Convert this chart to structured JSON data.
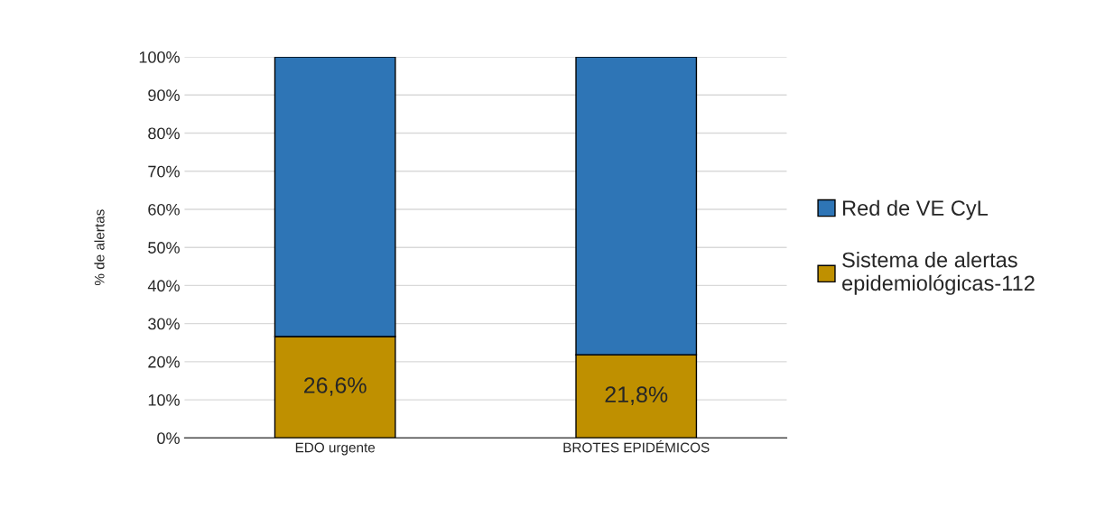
{
  "chart_data": {
    "type": "bar",
    "stacked": true,
    "ylabel": "% de alertas",
    "categories": [
      "EDO urgente",
      "BROTES EPIDÉMICOS"
    ],
    "series": [
      {
        "name": "Sistema de alertas epidemiológicas-112",
        "color": "#bf9000",
        "values": [
          26.6,
          21.8
        ],
        "value_labels": [
          "26,6%",
          "21,8%"
        ]
      },
      {
        "name": "Red de VE CyL",
        "color": "#2e75b6",
        "values": [
          73.4,
          78.2
        ]
      }
    ],
    "ylim": [
      0,
      100
    ],
    "yticks": [
      {
        "value": 0,
        "label": "0%"
      },
      {
        "value": 10,
        "label": "10%"
      },
      {
        "value": 20,
        "label": "20%"
      },
      {
        "value": 30,
        "label": "30%"
      },
      {
        "value": 40,
        "label": "40%"
      },
      {
        "value": 50,
        "label": "50%"
      },
      {
        "value": 60,
        "label": "60%"
      },
      {
        "value": 70,
        "label": "70%"
      },
      {
        "value": 80,
        "label": "80%"
      },
      {
        "value": 90,
        "label": "90%"
      },
      {
        "value": 100,
        "label": "100%"
      }
    ],
    "grid": "y",
    "legend": "right"
  }
}
